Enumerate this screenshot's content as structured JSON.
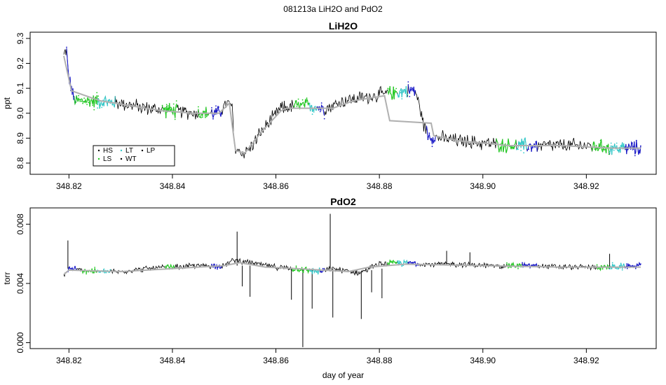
{
  "title": "081213a   LiH2O and PdO2",
  "colors": {
    "HS": "#000000",
    "LS": "#22cc22",
    "LT": "#33cccc",
    "WT": "#000000",
    "LP": "#000000",
    "blue": "#1a1acc",
    "black": "#000000",
    "smooth": "#b0b0b0"
  },
  "chart_data": [
    {
      "type": "line",
      "title": "LiH2O",
      "xlabel": "",
      "ylabel": "ppt",
      "xlim": [
        348.8125,
        348.9335
      ],
      "ylim": [
        8.755,
        9.325
      ],
      "xticks": [
        348.82,
        348.84,
        348.86,
        348.88,
        348.9,
        348.92
      ],
      "xtick_labels": [
        "348.82",
        "348.84",
        "348.86",
        "348.88",
        "348.90",
        "348.92"
      ],
      "yticks": [
        8.8,
        8.9,
        9.0,
        9.1,
        9.2,
        9.3
      ],
      "ytick_labels": [
        "8.8",
        "8.9",
        "9.0",
        "9.1",
        "9.2",
        "9.3"
      ],
      "legend": {
        "position": "bottom-left",
        "entries": [
          "HS",
          "LT",
          "LP",
          "LS",
          "WT"
        ]
      },
      "series": [
        {
          "name": "",
          "kind": "raw",
          "points": [
            [
              348.819,
              9.23
            ],
            [
              348.8195,
              9.26
            ],
            [
              348.8199,
              9.15
            ],
            [
              348.8205,
              9.1
            ],
            [
              348.821,
              9.05
            ],
            [
              348.825,
              9.05
            ],
            [
              348.83,
              9.04
            ],
            [
              348.835,
              9.02
            ],
            [
              348.84,
              9.01
            ],
            [
              348.845,
              9.0
            ],
            [
              348.849,
              9.0
            ],
            [
              348.8505,
              9.04
            ],
            [
              348.8515,
              9.03
            ],
            [
              348.852,
              8.86
            ],
            [
              348.8535,
              8.84
            ],
            [
              348.855,
              8.86
            ],
            [
              348.857,
              8.92
            ],
            [
              348.859,
              8.97
            ],
            [
              348.861,
              9.02
            ],
            [
              348.864,
              9.03
            ],
            [
              348.867,
              9.03
            ],
            [
              348.869,
              9.02
            ],
            [
              348.871,
              9.03
            ],
            [
              348.873,
              9.05
            ],
            [
              348.876,
              9.06
            ],
            [
              348.879,
              9.07
            ],
            [
              348.882,
              9.08
            ],
            [
              348.885,
              9.09
            ],
            [
              348.887,
              9.09
            ],
            [
              348.8885,
              8.96
            ],
            [
              348.8895,
              8.91
            ],
            [
              348.892,
              8.9
            ],
            [
              348.895,
              8.89
            ],
            [
              348.9,
              8.88
            ],
            [
              348.905,
              8.87
            ],
            [
              348.91,
              8.87
            ],
            [
              348.915,
              8.87
            ],
            [
              348.92,
              8.87
            ],
            [
              348.925,
              8.86
            ],
            [
              348.9305,
              8.86
            ]
          ]
        },
        {
          "name": "",
          "kind": "smooth",
          "points": [
            [
              348.819,
              9.23
            ],
            [
              348.8205,
              9.09
            ],
            [
              348.826,
              9.05
            ],
            [
              348.832,
              9.03
            ],
            [
              348.838,
              9.01
            ],
            [
              348.844,
              9.0
            ],
            [
              348.849,
              9.0
            ],
            [
              348.851,
              9.04
            ],
            [
              348.8522,
              8.85
            ],
            [
              348.854,
              8.84
            ],
            [
              348.857,
              8.92
            ],
            [
              348.861,
              9.01
            ],
            [
              348.862,
              9.02
            ],
            [
              348.871,
              9.02
            ],
            [
              348.875,
              9.05
            ],
            [
              348.881,
              9.07
            ],
            [
              348.882,
              8.97
            ],
            [
              348.89,
              8.96
            ],
            [
              348.8905,
              8.91
            ],
            [
              348.895,
              8.89
            ],
            [
              348.905,
              8.87
            ],
            [
              348.915,
              8.87
            ],
            [
              348.925,
              8.86
            ],
            [
              348.9305,
              8.86
            ]
          ]
        }
      ],
      "colored_segments": [
        {
          "color": "blue",
          "x": [
            348.8195,
            348.8215
          ]
        },
        {
          "color": "green",
          "x": [
            348.821,
            348.826
          ]
        },
        {
          "color": "cyan",
          "x": [
            348.8255,
            348.829
          ]
        },
        {
          "color": "green",
          "x": [
            348.838,
            348.841
          ]
        },
        {
          "color": "green",
          "x": [
            348.845,
            348.847
          ]
        },
        {
          "color": "blue",
          "x": [
            348.8475,
            348.8495
          ]
        },
        {
          "color": "green",
          "x": [
            348.8635,
            348.8665
          ]
        },
        {
          "color": "cyan",
          "x": [
            348.8665,
            348.868
          ]
        },
        {
          "color": "blue",
          "x": [
            348.868,
            348.8695
          ]
        },
        {
          "color": "green",
          "x": [
            348.8815,
            348.8835
          ]
        },
        {
          "color": "cyan",
          "x": [
            348.8835,
            348.8855
          ]
        },
        {
          "color": "blue",
          "x": [
            348.8855,
            348.887
          ]
        },
        {
          "color": "blue",
          "x": [
            348.889,
            348.891
          ]
        },
        {
          "color": "green",
          "x": [
            348.9025,
            348.9065
          ]
        },
        {
          "color": "cyan",
          "x": [
            348.9065,
            348.9085
          ]
        },
        {
          "color": "blue",
          "x": [
            348.9085,
            348.9105
          ]
        },
        {
          "color": "green",
          "x": [
            348.921,
            348.9245
          ]
        },
        {
          "color": "cyan",
          "x": [
            348.9245,
            348.9275
          ]
        },
        {
          "color": "blue",
          "x": [
            348.9275,
            348.931
          ]
        }
      ]
    },
    {
      "type": "line",
      "title": "PdO2",
      "xlabel": "day of year",
      "ylabel": "torr",
      "xlim": [
        348.8125,
        348.9335
      ],
      "ylim": [
        -0.0004,
        0.0091
      ],
      "xticks": [
        348.82,
        348.84,
        348.86,
        348.88,
        348.9,
        348.92
      ],
      "xtick_labels": [
        "348.82",
        "348.84",
        "348.86",
        "348.88",
        "348.90",
        "348.92"
      ],
      "yticks": [
        0.0,
        0.004,
        0.008
      ],
      "ytick_labels": [
        "0.000",
        "0.004",
        "0.008"
      ],
      "series": [
        {
          "name": "",
          "kind": "raw",
          "points": [
            [
              348.819,
              0.0045
            ],
            [
              348.82,
              0.005
            ],
            [
              348.825,
              0.0048
            ],
            [
              348.83,
              0.0048
            ],
            [
              348.835,
              0.005
            ],
            [
              348.84,
              0.0051
            ],
            [
              348.845,
              0.0052
            ],
            [
              348.85,
              0.0052
            ],
            [
              348.852,
              0.0056
            ],
            [
              348.855,
              0.0054
            ],
            [
              348.86,
              0.0051
            ],
            [
              348.863,
              0.005
            ],
            [
              348.866,
              0.0049
            ],
            [
              348.869,
              0.0048
            ],
            [
              348.871,
              0.005
            ],
            [
              348.873,
              0.0049
            ],
            [
              348.876,
              0.0047
            ],
            [
              348.88,
              0.0053
            ],
            [
              348.885,
              0.0054
            ],
            [
              348.89,
              0.0053
            ],
            [
              348.895,
              0.0053
            ],
            [
              348.9,
              0.0052
            ],
            [
              348.905,
              0.0052
            ],
            [
              348.91,
              0.0052
            ],
            [
              348.915,
              0.0051
            ],
            [
              348.92,
              0.0051
            ],
            [
              348.925,
              0.0051
            ],
            [
              348.9305,
              0.0052
            ]
          ]
        },
        {
          "name": "",
          "kind": "smooth",
          "points": [
            [
              348.819,
              0.0046
            ],
            [
              348.82,
              0.0049
            ],
            [
              348.83,
              0.0048
            ],
            [
              348.84,
              0.005
            ],
            [
              348.85,
              0.0052
            ],
            [
              348.853,
              0.0054
            ],
            [
              348.858,
              0.0051
            ],
            [
              348.864,
              0.005
            ],
            [
              348.869,
              0.0049
            ],
            [
              348.874,
              0.0048
            ],
            [
              348.878,
              0.0051
            ],
            [
              348.885,
              0.0053
            ],
            [
              348.9,
              0.0052
            ],
            [
              348.915,
              0.0051
            ],
            [
              348.9305,
              0.0051
            ]
          ]
        }
      ],
      "spikes": [
        {
          "x": 348.8198,
          "from": 0.005,
          "to": 0.0069
        },
        {
          "x": 348.8525,
          "from": 0.0052,
          "to": 0.0075
        },
        {
          "x": 348.8535,
          "from": 0.0052,
          "to": 0.0038
        },
        {
          "x": 348.855,
          "from": 0.0052,
          "to": 0.0031
        },
        {
          "x": 348.863,
          "from": 0.005,
          "to": 0.0029
        },
        {
          "x": 348.8652,
          "from": 0.005,
          "to": -0.0003
        },
        {
          "x": 348.867,
          "from": 0.005,
          "to": 0.0023
        },
        {
          "x": 348.8705,
          "from": 0.005,
          "to": 0.0087
        },
        {
          "x": 348.871,
          "from": 0.005,
          "to": 0.0017
        },
        {
          "x": 348.8765,
          "from": 0.0048,
          "to": 0.0016
        },
        {
          "x": 348.8785,
          "from": 0.0049,
          "to": 0.0034
        },
        {
          "x": 348.8805,
          "from": 0.005,
          "to": 0.003
        },
        {
          "x": 348.893,
          "from": 0.0052,
          "to": 0.0062
        },
        {
          "x": 348.8975,
          "from": 0.0052,
          "to": 0.0061
        },
        {
          "x": 348.9245,
          "from": 0.0051,
          "to": 0.006
        }
      ],
      "colored_segments": [
        {
          "color": "blue",
          "x": [
            348.8195,
            348.8215
          ]
        },
        {
          "color": "green",
          "x": [
            348.8225,
            348.8255
          ]
        },
        {
          "color": "cyan",
          "x": [
            348.8255,
            348.828
          ]
        },
        {
          "color": "green",
          "x": [
            348.8385,
            348.8405
          ]
        },
        {
          "color": "blue",
          "x": [
            348.8475,
            348.8495
          ]
        },
        {
          "color": "green",
          "x": [
            348.863,
            348.8665
          ]
        },
        {
          "color": "cyan",
          "x": [
            348.8665,
            348.8685
          ]
        },
        {
          "color": "blue",
          "x": [
            348.8685,
            348.8695
          ]
        },
        {
          "color": "green",
          "x": [
            348.8815,
            348.8835
          ]
        },
        {
          "color": "cyan",
          "x": [
            348.8835,
            348.8855
          ]
        },
        {
          "color": "blue",
          "x": [
            348.8855,
            348.8875
          ]
        },
        {
          "color": "green",
          "x": [
            348.9045,
            348.9075
          ]
        },
        {
          "color": "blue",
          "x": [
            348.9075,
            348.9105
          ]
        },
        {
          "color": "green",
          "x": [
            348.922,
            348.9245
          ]
        },
        {
          "color": "cyan",
          "x": [
            348.9245,
            348.9275
          ]
        },
        {
          "color": "blue",
          "x": [
            348.9275,
            348.931
          ]
        }
      ]
    }
  ]
}
